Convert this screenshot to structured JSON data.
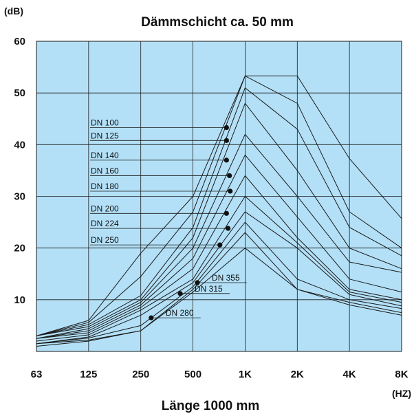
{
  "chart_data": {
    "type": "line",
    "title": "Dämmschicht ca. 50 mm",
    "xlabel": "Länge 1000 mm",
    "ylabel": "(dB)",
    "x_unit": "(HZ)",
    "categories": [
      "63",
      "125",
      "250",
      "500",
      "1K",
      "2K",
      "4K",
      "8K"
    ],
    "y_ticks": [
      "10",
      "20",
      "30",
      "40",
      "50",
      "60"
    ],
    "ylim": [
      0,
      60
    ],
    "grid": true,
    "colors": {
      "plot_bg": "#b3e0f7",
      "line": "#1a1a1a",
      "grid": "#1a1a1a"
    },
    "series": [
      {
        "name": "DN 100",
        "values": [
          3.0,
          6.0,
          19.0,
          30.0,
          53.3,
          53.3,
          37.3,
          25.7
        ]
      },
      {
        "name": "DN 125",
        "values": [
          3.0,
          5.6,
          14.5,
          27.0,
          53.3,
          48.0,
          27.0,
          20.0
        ]
      },
      {
        "name": "DN 140",
        "values": [
          3.0,
          5.2,
          10.8,
          24.0,
          51.0,
          43.0,
          24.0,
          18.5
        ]
      },
      {
        "name": "DN 160",
        "values": [
          3.0,
          4.8,
          10.0,
          22.0,
          48.0,
          35.0,
          20.0,
          16.0
        ]
      },
      {
        "name": "DN 180",
        "values": [
          2.5,
          4.4,
          9.5,
          20.0,
          42.0,
          30.0,
          17.3,
          15.3
        ]
      },
      {
        "name": "DN 200",
        "values": [
          2.5,
          4.0,
          9.0,
          18.0,
          38.0,
          26.0,
          14.0,
          11.5
        ]
      },
      {
        "name": "DN 224",
        "values": [
          2.5,
          3.6,
          8.5,
          16.0,
          34.0,
          22.0,
          12.0,
          10.0
        ]
      },
      {
        "name": "DN 250",
        "values": [
          2.0,
          3.2,
          8.0,
          14.0,
          30.0,
          21.0,
          11.5,
          9.5
        ]
      },
      {
        "name": "DN 280",
        "values": [
          1.5,
          2.8,
          7.0,
          13.3,
          27.0,
          20.0,
          11.0,
          8.8
        ]
      },
      {
        "name": "DN 315",
        "values": [
          1.5,
          2.6,
          5.0,
          12.5,
          25.0,
          14.0,
          10.0,
          8.3
        ]
      },
      {
        "name": "DN 355",
        "values": [
          1.5,
          2.2,
          4.0,
          12.0,
          23.0,
          12.0,
          9.5,
          7.5
        ]
      },
      {
        "name": "",
        "values": [
          1.0,
          2.0,
          4.0,
          11.5,
          20.0,
          12.0,
          9.0,
          7.0
        ]
      }
    ],
    "annotations": [
      {
        "text": "DN 100",
        "x": "781",
        "y": 43.3
      },
      {
        "text": "DN 125",
        "x": "781",
        "y": 40.8
      },
      {
        "text": "DN 140",
        "x": "781",
        "y": 37.0
      },
      {
        "text": "DN 160",
        "x": "812",
        "y": 34.0
      },
      {
        "text": "DN 180",
        "x": "820",
        "y": 31.0
      },
      {
        "text": "DN 200",
        "x": "781",
        "y": 26.7
      },
      {
        "text": "DN 224",
        "x": "797",
        "y": 23.8
      },
      {
        "text": "DN 250",
        "x": "715",
        "y": 20.6
      },
      {
        "text": "DN 355",
        "x": "530",
        "y": 13.3
      },
      {
        "text": "DN 315",
        "x": "422",
        "y": 11.2
      },
      {
        "text": "DN 280",
        "x": "287",
        "y": 6.5
      }
    ]
  }
}
